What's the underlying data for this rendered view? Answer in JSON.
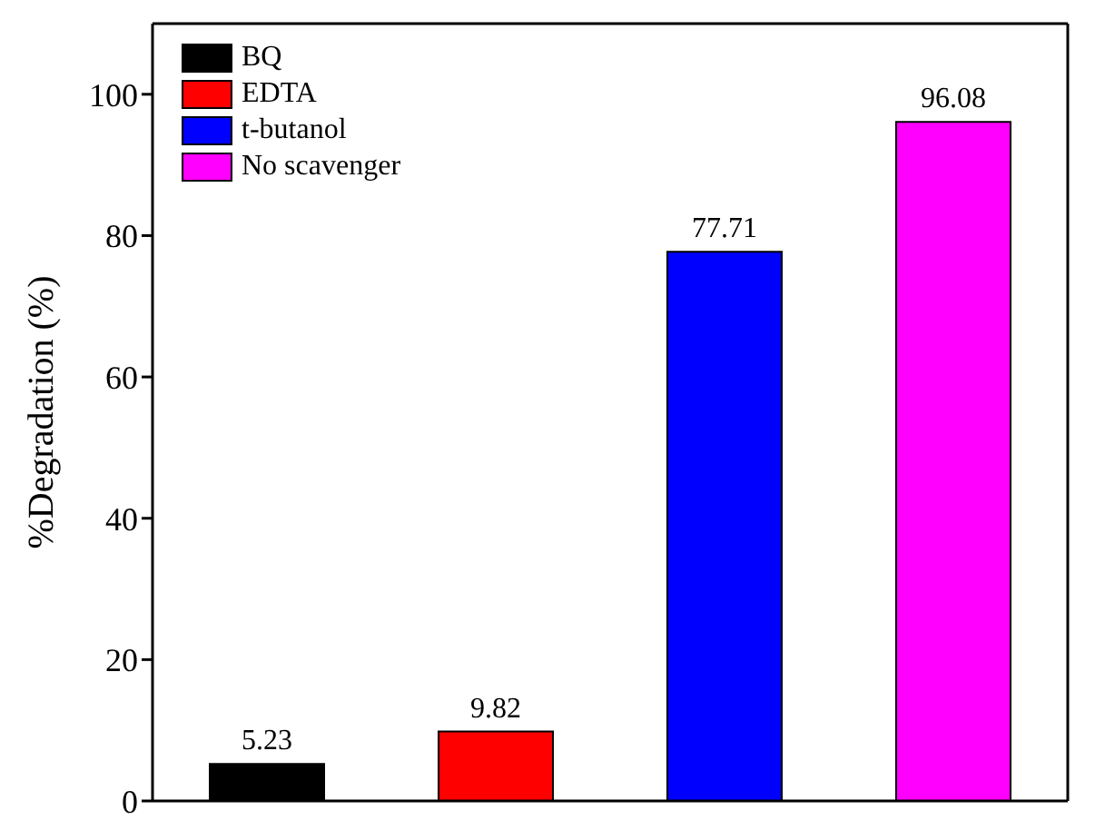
{
  "chart_data": {
    "type": "bar",
    "ylabel": "%Degradation (%)",
    "categories": [
      null,
      null,
      null,
      null
    ],
    "series": [
      {
        "name": "BQ",
        "color": "#000000",
        "values": [
          5.23,
          null,
          null,
          null
        ]
      },
      {
        "name": "EDTA",
        "color": "#ff0000",
        "values": [
          null,
          9.82,
          null,
          null
        ]
      },
      {
        "name": "t-butanol",
        "color": "#0000ff",
        "values": [
          null,
          null,
          77.71,
          null
        ]
      },
      {
        "name": "No scavenger",
        "color": "#ff00ff",
        "values": [
          null,
          null,
          null,
          96.08
        ]
      }
    ],
    "ylim": [
      0,
      110
    ],
    "yticks": [
      0,
      20,
      40,
      60,
      80,
      100
    ],
    "legend": "top left",
    "data_labels": true,
    "tick_labels": "y"
  }
}
